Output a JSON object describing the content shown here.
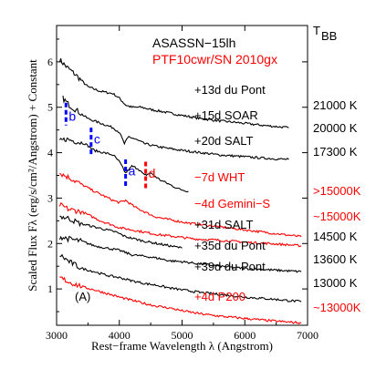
{
  "chart_data": {
    "type": "line",
    "xlabel": "Rest−frame Wavelength λ (Angstrom)",
    "ylabel": "Scaled Flux Fλ (erg/s/cm²/Angstrom) + Constant",
    "xlim": [
      3000,
      7000
    ],
    "ylim": [
      0.2,
      6.8
    ],
    "x_ticks": [
      3000,
      4000,
      5000,
      6000,
      7000
    ],
    "y_ticks": [
      1,
      2,
      3,
      4,
      5,
      6
    ],
    "grid": false,
    "legend": [
      {
        "name": "ASASSN−15lh",
        "color": "#000000"
      },
      {
        "name": "PTF10cwr/SN 2010gx",
        "color": "#ff0000"
      }
    ],
    "temperature_header": "T",
    "temperature_header_sub": "BB",
    "panel_label": "(A)",
    "series": [
      {
        "name": "+13d du Pont",
        "color": "#000000",
        "temperature": "21000 K",
        "temperature_color": "#000000",
        "points": [
          [
            3050,
            6.05
          ],
          [
            3150,
            5.9
          ],
          [
            3300,
            5.72
          ],
          [
            3500,
            5.45
          ],
          [
            3700,
            5.35
          ],
          [
            3900,
            5.3
          ],
          [
            4000,
            5.2
          ],
          [
            4100,
            5.05
          ],
          [
            4200,
            5.0
          ],
          [
            4350,
            5.0
          ],
          [
            4500,
            4.95
          ],
          [
            4700,
            4.9
          ],
          [
            5000,
            4.82
          ],
          [
            5300,
            4.75
          ],
          [
            5600,
            4.7
          ],
          [
            5900,
            4.66
          ],
          [
            6300,
            4.6
          ],
          [
            6700,
            4.55
          ]
        ]
      },
      {
        "name": "+15d SOAR",
        "color": "#000000",
        "temperature": "20000 K",
        "temperature_color": "#000000",
        "points": [
          [
            3100,
            5.2
          ],
          [
            3200,
            5.05
          ],
          [
            3350,
            4.9
          ],
          [
            3500,
            4.75
          ],
          [
            3700,
            4.65
          ],
          [
            3900,
            4.55
          ],
          [
            4000,
            4.45
          ],
          [
            4080,
            4.2
          ],
          [
            4150,
            4.35
          ],
          [
            4250,
            4.3
          ],
          [
            4400,
            4.2
          ],
          [
            4550,
            4.15
          ],
          [
            4750,
            4.1
          ],
          [
            5000,
            4.05
          ],
          [
            5300,
            4.0
          ],
          [
            5600,
            3.95
          ],
          [
            5900,
            3.92
          ],
          [
            6300,
            3.88
          ],
          [
            6700,
            3.85
          ]
        ]
      },
      {
        "name": "+20d SALT",
        "color": "#000000",
        "temperature": "17300 K",
        "temperature_color": "#000000",
        "points": [
          [
            3050,
            4.25
          ],
          [
            3150,
            4.3
          ],
          [
            3300,
            4.25
          ],
          [
            3450,
            4.2
          ],
          [
            3600,
            4.05
          ],
          [
            3750,
            4.0
          ],
          [
            3900,
            3.95
          ],
          [
            4000,
            3.8
          ],
          [
            4100,
            3.55
          ],
          [
            4200,
            3.7
          ],
          [
            4300,
            3.65
          ],
          [
            4400,
            3.5
          ],
          [
            4500,
            3.55
          ],
          [
            4650,
            3.4
          ],
          [
            4800,
            3.3
          ],
          [
            4950,
            3.2
          ],
          [
            5100,
            3.15
          ]
        ]
      },
      {
        "name": "−7d WHT",
        "color": "#ff0000",
        "temperature": ">15000K",
        "temperature_color": "#ff0000",
        "points": [
          [
            3050,
            3.55
          ],
          [
            3200,
            3.45
          ],
          [
            3400,
            3.3
          ],
          [
            3600,
            3.15
          ],
          [
            3750,
            3.05
          ],
          [
            3900,
            2.95
          ],
          [
            4000,
            2.9
          ],
          [
            4100,
            2.95
          ],
          [
            4250,
            2.8
          ],
          [
            4400,
            2.7
          ],
          [
            4550,
            2.6
          ],
          [
            4700,
            2.55
          ],
          [
            4900,
            2.5
          ],
          [
            5100,
            2.45
          ],
          [
            5400,
            2.4
          ],
          [
            5700,
            2.35
          ],
          [
            6000,
            2.3
          ],
          [
            6300,
            2.25
          ],
          [
            6600,
            2.2
          ],
          [
            6900,
            2.15
          ]
        ]
      },
      {
        "name": "−4d Gemini−S",
        "color": "#ff0000",
        "temperature": "~15000K",
        "temperature_color": "#ff0000",
        "points": [
          [
            3050,
            2.85
          ],
          [
            3200,
            2.75
          ],
          [
            3400,
            2.7
          ],
          [
            3550,
            2.6
          ],
          [
            3700,
            2.5
          ],
          [
            3800,
            2.45
          ],
          [
            4000,
            2.35
          ],
          [
            4200,
            2.3
          ],
          [
            4400,
            2.25
          ],
          [
            4600,
            2.2
          ],
          [
            4900,
            2.15
          ],
          [
            5200,
            2.1
          ],
          [
            5500,
            2.08
          ],
          [
            5800,
            2.05
          ],
          [
            6100,
            2.02
          ],
          [
            6400,
            2.0
          ],
          [
            6900,
            1.95
          ]
        ]
      },
      {
        "name": "+31d SALT",
        "color": "#000000",
        "temperature": "14500 K",
        "temperature_color": "#000000",
        "points": [
          [
            3050,
            2.6
          ],
          [
            3200,
            2.55
          ],
          [
            3350,
            2.45
          ],
          [
            3500,
            2.4
          ],
          [
            3650,
            2.35
          ],
          [
            3800,
            2.3
          ],
          [
            3950,
            2.25
          ],
          [
            4100,
            2.15
          ],
          [
            4250,
            2.1
          ],
          [
            4400,
            2.05
          ],
          [
            4600,
            2.0
          ],
          [
            4800,
            1.95
          ],
          [
            5000,
            1.9
          ]
        ]
      },
      {
        "name": "+35d du Pont",
        "color": "#000000",
        "temperature": "13600 K",
        "temperature_color": "#000000",
        "points": [
          [
            3050,
            2.15
          ],
          [
            3200,
            2.1
          ],
          [
            3400,
            2.05
          ],
          [
            3600,
            1.95
          ],
          [
            3800,
            1.9
          ],
          [
            4000,
            1.85
          ],
          [
            4200,
            1.75
          ],
          [
            4400,
            1.72
          ],
          [
            4600,
            1.68
          ],
          [
            4800,
            1.62
          ],
          [
            5000,
            1.6
          ],
          [
            5300,
            1.55
          ],
          [
            5600,
            1.5
          ],
          [
            6000,
            1.45
          ],
          [
            6400,
            1.42
          ],
          [
            6900,
            1.38
          ]
        ]
      },
      {
        "name": "+39d du Pont",
        "color": "#000000",
        "temperature": "13000 K",
        "temperature_color": "#000000",
        "points": [
          [
            3050,
            1.75
          ],
          [
            3200,
            1.6
          ],
          [
            3400,
            1.45
          ],
          [
            3600,
            1.38
          ],
          [
            3800,
            1.3
          ],
          [
            4000,
            1.25
          ],
          [
            4200,
            1.18
          ],
          [
            4400,
            1.12
          ],
          [
            4600,
            1.08
          ],
          [
            4800,
            1.02
          ],
          [
            5000,
            0.98
          ],
          [
            5300,
            0.92
          ],
          [
            5600,
            0.88
          ],
          [
            6000,
            0.82
          ],
          [
            6400,
            0.78
          ],
          [
            6900,
            0.72
          ]
        ]
      },
      {
        "name": "+4d P200",
        "color": "#ff0000",
        "temperature": "~13000K",
        "temperature_color": "#ff0000",
        "points": [
          [
            3050,
            1.25
          ],
          [
            3200,
            1.15
          ],
          [
            3400,
            1.05
          ],
          [
            3600,
            0.98
          ],
          [
            3800,
            0.9
          ],
          [
            4000,
            0.82
          ],
          [
            4200,
            0.75
          ],
          [
            4400,
            0.68
          ],
          [
            4600,
            0.62
          ],
          [
            4800,
            0.58
          ],
          [
            5000,
            0.52
          ],
          [
            5300,
            0.45
          ],
          [
            5600,
            0.4
          ],
          [
            6000,
            0.35
          ],
          [
            6400,
            0.3
          ],
          [
            6900,
            0.25
          ]
        ]
      }
    ],
    "markers": [
      {
        "label": "b",
        "x": 3150,
        "y0": 4.6,
        "y1": 5.1,
        "label_y": 4.7,
        "color": "#0000ff"
      },
      {
        "label": "c",
        "x": 3550,
        "y0": 3.95,
        "y1": 4.55,
        "label_y": 4.2,
        "color": "#0000ff"
      },
      {
        "label": "a",
        "x": 4100,
        "y0": 3.25,
        "y1": 3.85,
        "label_y": 3.5,
        "color": "#0000ff"
      },
      {
        "label": "d",
        "x": 4420,
        "y0": 3.2,
        "y1": 3.8,
        "label_y": 3.45,
        "color": "#ff0000"
      }
    ]
  }
}
